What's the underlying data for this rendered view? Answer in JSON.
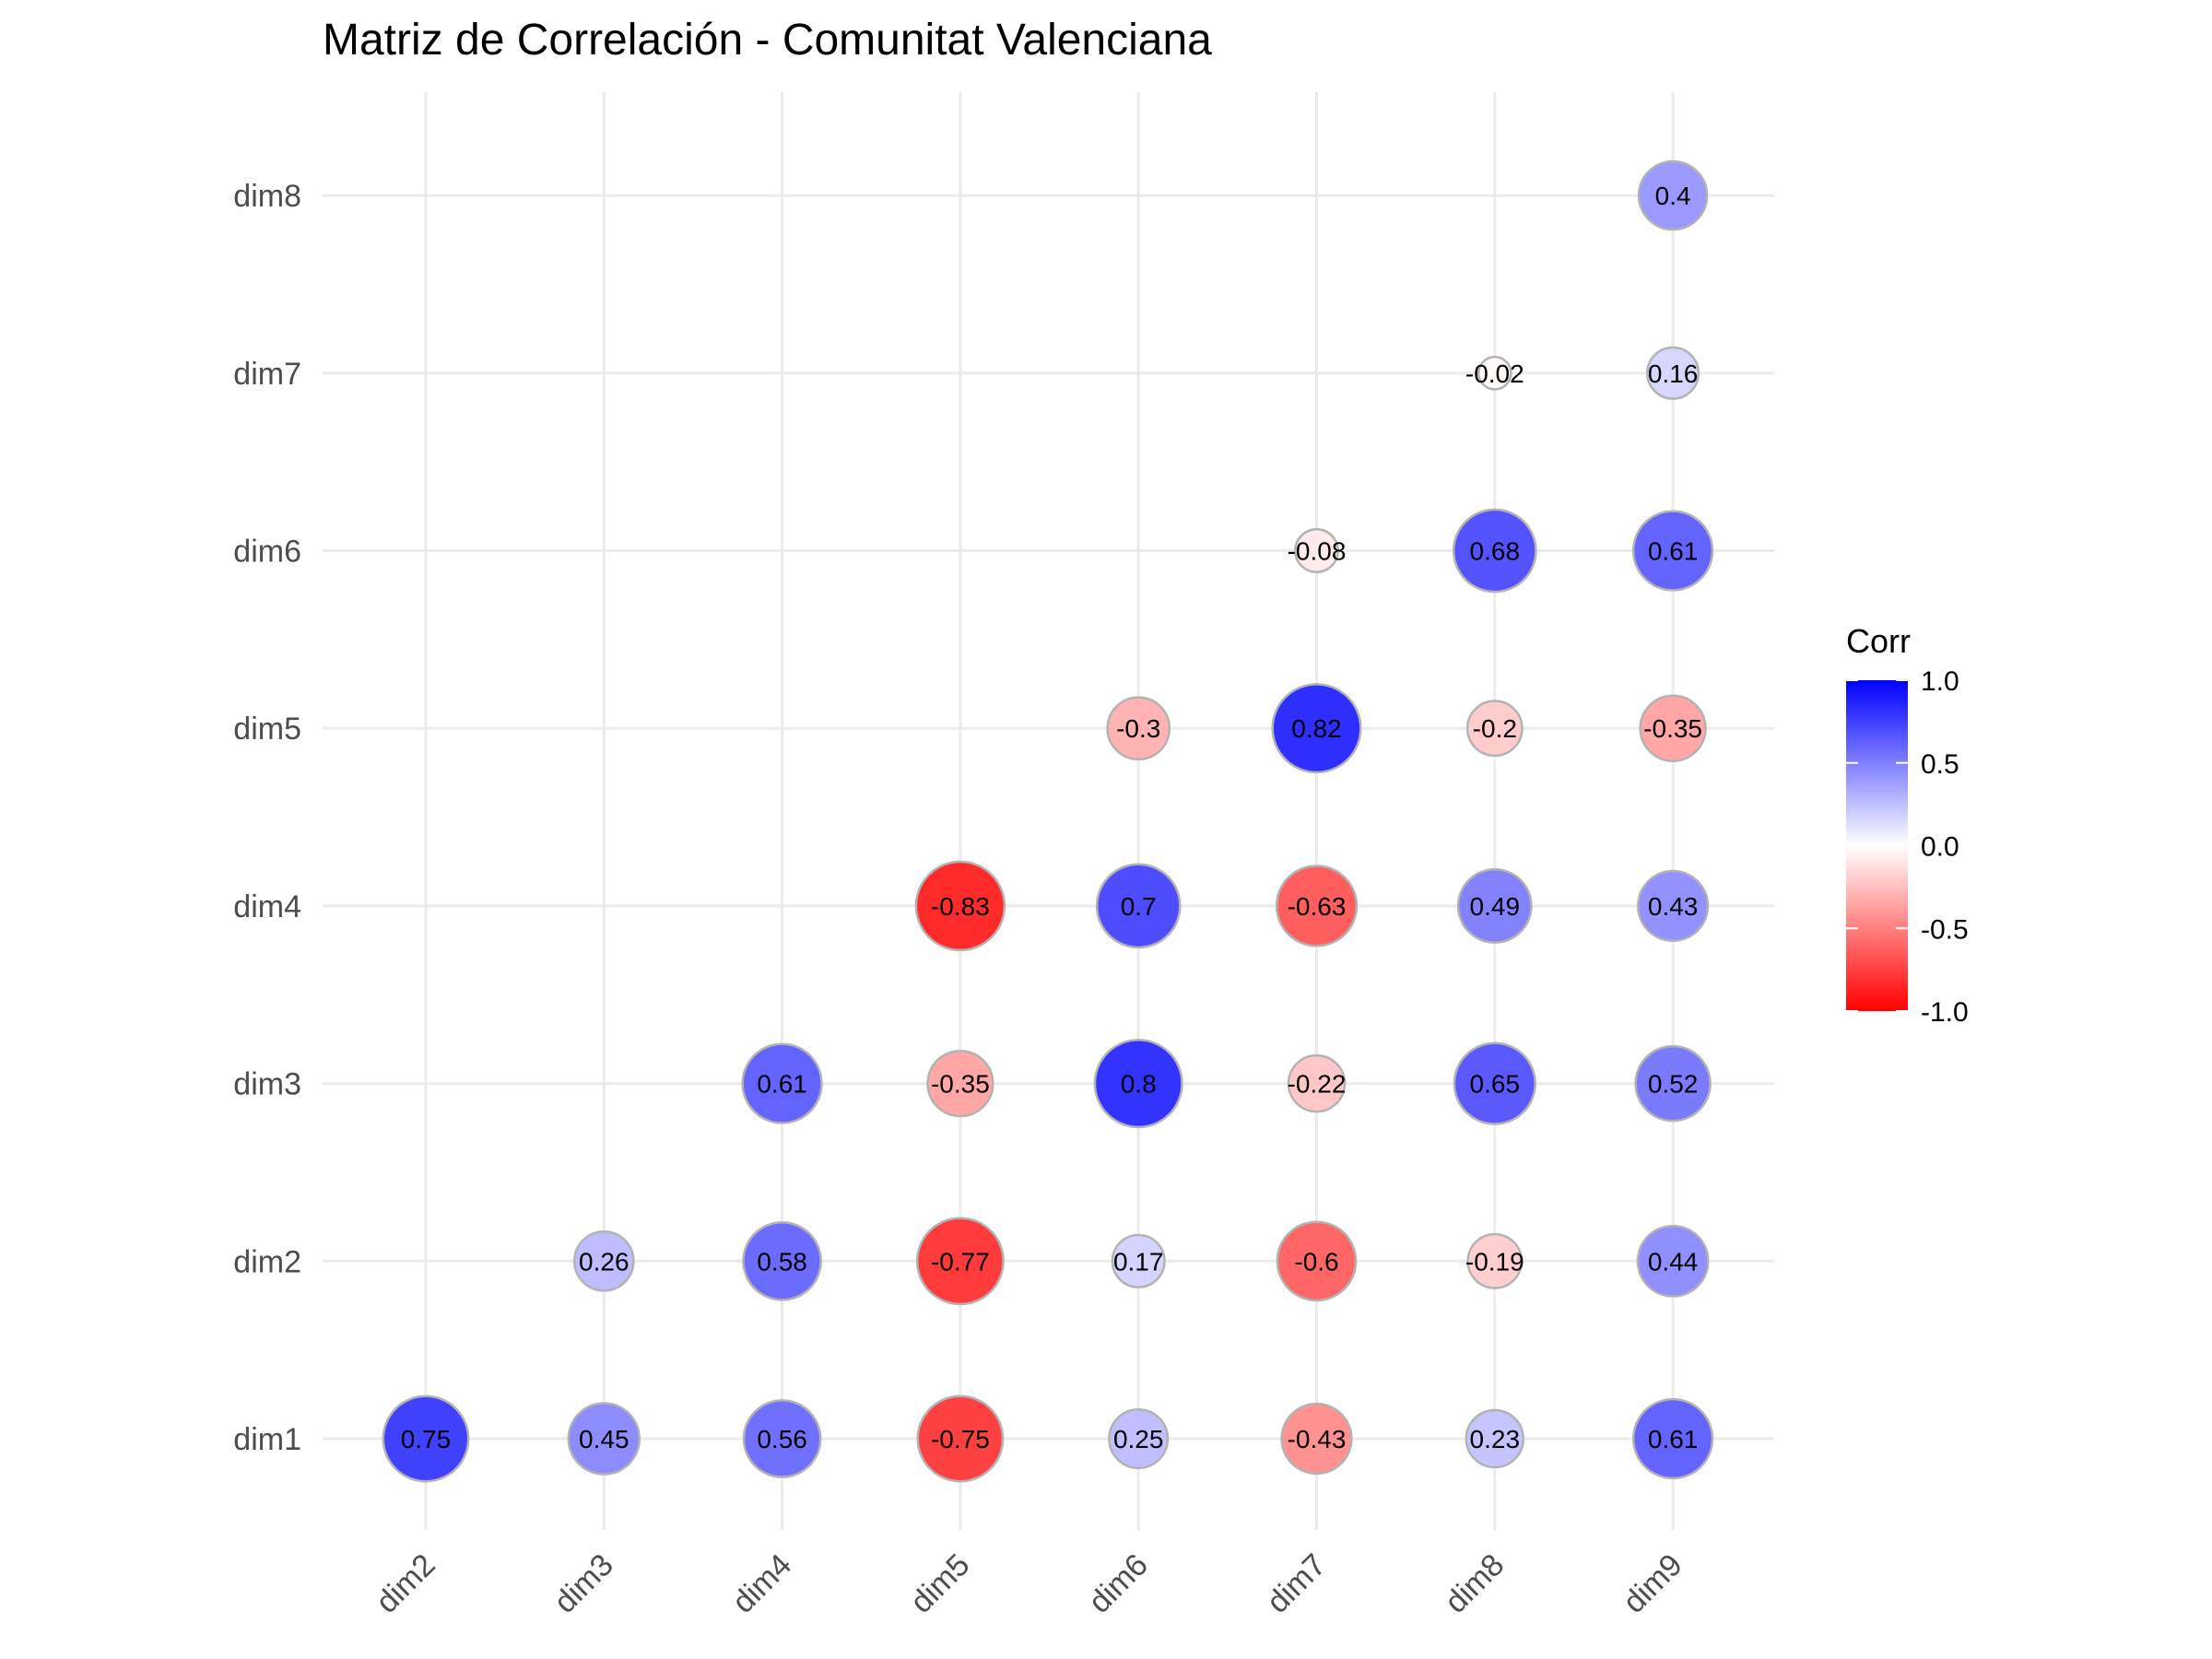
{
  "chart_data": {
    "type": "bubble-correlation-matrix",
    "title": "Matriz de Correlación - Comunitat Valenciana",
    "x_categories": [
      "dim2",
      "dim3",
      "dim4",
      "dim5",
      "dim6",
      "dim7",
      "dim8",
      "dim9"
    ],
    "y_categories": [
      "dim1",
      "dim2",
      "dim3",
      "dim4",
      "dim5",
      "dim6",
      "dim7",
      "dim8"
    ],
    "cells": [
      {
        "x": "dim2",
        "y": "dim1",
        "value": 0.75,
        "label": "0.75"
      },
      {
        "x": "dim3",
        "y": "dim1",
        "value": 0.45,
        "label": "0.45"
      },
      {
        "x": "dim4",
        "y": "dim1",
        "value": 0.56,
        "label": "0.56"
      },
      {
        "x": "dim5",
        "y": "dim1",
        "value": -0.75,
        "label": "-0.75"
      },
      {
        "x": "dim6",
        "y": "dim1",
        "value": 0.25,
        "label": "0.25"
      },
      {
        "x": "dim7",
        "y": "dim1",
        "value": -0.43,
        "label": "-0.43"
      },
      {
        "x": "dim8",
        "y": "dim1",
        "value": 0.23,
        "label": "0.23"
      },
      {
        "x": "dim9",
        "y": "dim1",
        "value": 0.61,
        "label": "0.61"
      },
      {
        "x": "dim3",
        "y": "dim2",
        "value": 0.26,
        "label": "0.26"
      },
      {
        "x": "dim4",
        "y": "dim2",
        "value": 0.58,
        "label": "0.58"
      },
      {
        "x": "dim5",
        "y": "dim2",
        "value": -0.77,
        "label": "-0.77"
      },
      {
        "x": "dim6",
        "y": "dim2",
        "value": 0.17,
        "label": "0.17"
      },
      {
        "x": "dim7",
        "y": "dim2",
        "value": -0.6,
        "label": "-0.6"
      },
      {
        "x": "dim8",
        "y": "dim2",
        "value": -0.19,
        "label": "-0.19"
      },
      {
        "x": "dim9",
        "y": "dim2",
        "value": 0.44,
        "label": "0.44"
      },
      {
        "x": "dim4",
        "y": "dim3",
        "value": 0.61,
        "label": "0.61"
      },
      {
        "x": "dim5",
        "y": "dim3",
        "value": -0.35,
        "label": "-0.35"
      },
      {
        "x": "dim6",
        "y": "dim3",
        "value": 0.8,
        "label": "0.8"
      },
      {
        "x": "dim7",
        "y": "dim3",
        "value": -0.22,
        "label": "-0.22"
      },
      {
        "x": "dim8",
        "y": "dim3",
        "value": 0.65,
        "label": "0.65"
      },
      {
        "x": "dim9",
        "y": "dim3",
        "value": 0.52,
        "label": "0.52"
      },
      {
        "x": "dim5",
        "y": "dim4",
        "value": -0.83,
        "label": "-0.83"
      },
      {
        "x": "dim6",
        "y": "dim4",
        "value": 0.7,
        "label": "0.7"
      },
      {
        "x": "dim7",
        "y": "dim4",
        "value": -0.63,
        "label": "-0.63"
      },
      {
        "x": "dim8",
        "y": "dim4",
        "value": 0.49,
        "label": "0.49"
      },
      {
        "x": "dim9",
        "y": "dim4",
        "value": 0.43,
        "label": "0.43"
      },
      {
        "x": "dim6",
        "y": "dim5",
        "value": -0.3,
        "label": "-0.3"
      },
      {
        "x": "dim7",
        "y": "dim5",
        "value": 0.82,
        "label": "0.82"
      },
      {
        "x": "dim8",
        "y": "dim5",
        "value": -0.2,
        "label": "-0.2"
      },
      {
        "x": "dim9",
        "y": "dim5",
        "value": -0.35,
        "label": "-0.35"
      },
      {
        "x": "dim7",
        "y": "dim6",
        "value": -0.08,
        "label": "-0.08"
      },
      {
        "x": "dim8",
        "y": "dim6",
        "value": 0.68,
        "label": "0.68"
      },
      {
        "x": "dim9",
        "y": "dim6",
        "value": 0.61,
        "label": "0.61"
      },
      {
        "x": "dim8",
        "y": "dim7",
        "value": -0.02,
        "label": "-0.02"
      },
      {
        "x": "dim9",
        "y": "dim7",
        "value": 0.16,
        "label": "0.16"
      },
      {
        "x": "dim9",
        "y": "dim8",
        "value": 0.4,
        "label": "0.4"
      }
    ],
    "legend": {
      "title": "Corr",
      "ticks": [
        "1.0",
        "0.5",
        "0.0",
        "-0.5",
        "-1.0"
      ],
      "tick_values": [
        1.0,
        0.5,
        0.0,
        -0.5,
        -1.0
      ],
      "range": [
        -1,
        1
      ],
      "colors": {
        "high": "#0000ff",
        "mid": "#ffffff",
        "low": "#ff0000"
      },
      "placement": "right"
    },
    "grid": true,
    "size_encodes": "absolute correlation"
  }
}
